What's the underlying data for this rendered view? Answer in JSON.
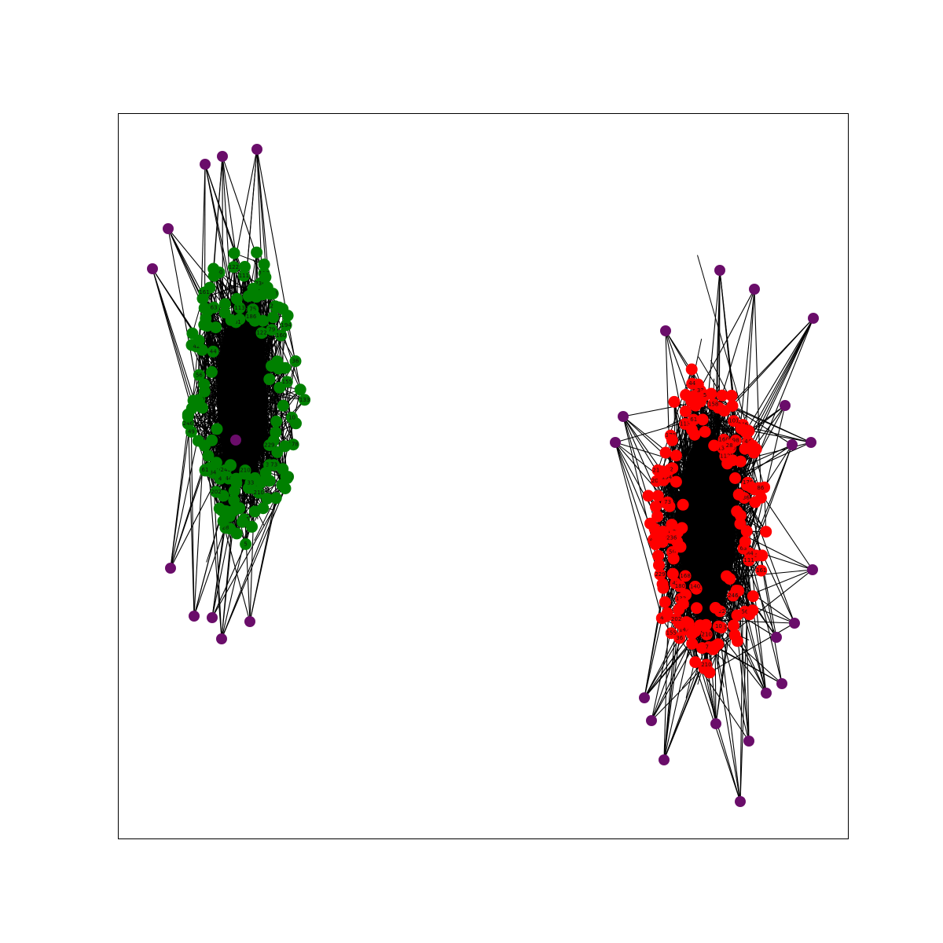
{
  "diagram": {
    "type": "network-graph",
    "frame": "box",
    "colors": {
      "background": "#ffffff",
      "edge": "#000000",
      "frame": "#000000",
      "community_left": "#008000",
      "community_right": "#ff0000",
      "outer_nodes": "#6a0d6a"
    },
    "communities": [
      {
        "id": "left",
        "color_key": "community_left",
        "node_count": 150,
        "outer_node_count": 11
      },
      {
        "id": "right",
        "color_key": "community_right",
        "node_count": 170,
        "outer_node_count": 18
      }
    ],
    "visible_node_labels": [
      "236",
      "207",
      "113",
      "112",
      "122",
      "138",
      "160",
      "178",
      "50",
      "75",
      "229",
      "49",
      "36",
      "42",
      "101",
      "84",
      "44",
      "63",
      "66",
      "98",
      "79",
      "220",
      "133",
      "176",
      "180",
      "210",
      "217",
      "142",
      "122",
      "28",
      "194",
      "210",
      "246",
      "111",
      "246",
      "213",
      "246",
      "56",
      "61",
      "33",
      "4",
      "10",
      "5",
      "161",
      "44",
      "32",
      "73",
      "155",
      "186",
      "202",
      "158",
      "140",
      "168"
    ]
  }
}
